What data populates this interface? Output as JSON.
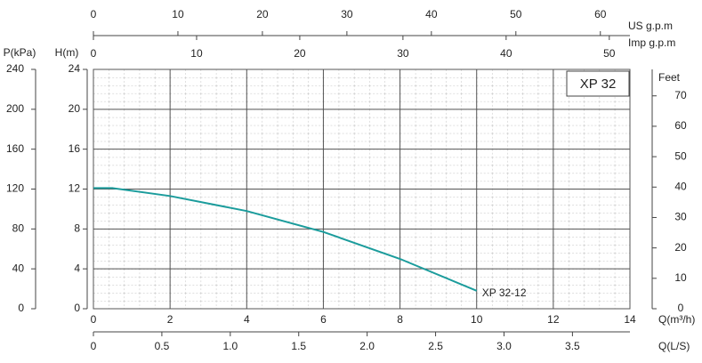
{
  "chart_data": {
    "type": "line",
    "title": "XP 32",
    "x_label": "Q(m³/h)",
    "y_label": "H(m)",
    "x": [
      0,
      0.5,
      2,
      4,
      6,
      8,
      10
    ],
    "series": [
      {
        "name": "XP 32-12",
        "color": "#1b9c9c",
        "values": [
          12.1,
          12.1,
          11.3,
          9.8,
          7.7,
          5.0,
          1.8
        ]
      }
    ],
    "xlim": [
      0,
      14
    ],
    "xticks": [
      0,
      2,
      4,
      6,
      8,
      10,
      12,
      14
    ],
    "ylim": [
      0,
      24
    ],
    "yticks": [
      0,
      4,
      8,
      12,
      16,
      20,
      24
    ],
    "grid": true,
    "extra_axes": [
      {
        "label": "P(kPa)",
        "side": "left",
        "lim": [
          0,
          240
        ],
        "ticks": [
          0,
          40,
          80,
          120,
          160,
          200,
          240
        ]
      },
      {
        "label": "Feet",
        "side": "right",
        "lim": [
          0,
          78.7
        ],
        "ticks": [
          0,
          10,
          20,
          30,
          40,
          50,
          60,
          70
        ]
      },
      {
        "label": "US g.p.m",
        "side": "top",
        "lim": [
          0,
          63.5
        ],
        "ticks": [
          0,
          10,
          20,
          30,
          40,
          50,
          60
        ]
      },
      {
        "label": "Imp g.p.m",
        "side": "top-inner",
        "lim": [
          0,
          52
        ],
        "ticks": [
          0,
          10,
          20,
          30,
          40,
          50
        ]
      },
      {
        "label": "Q(L/S)",
        "side": "bottom",
        "lim": [
          0,
          3.92
        ],
        "ticks": [
          0,
          0.5,
          {
            "value": 1,
            "label": "1.0"
          },
          1.5,
          {
            "value": 2,
            "label": "2.0"
          },
          2.5,
          {
            "value": 3,
            "label": "3.0"
          },
          3.5
        ]
      }
    ]
  }
}
